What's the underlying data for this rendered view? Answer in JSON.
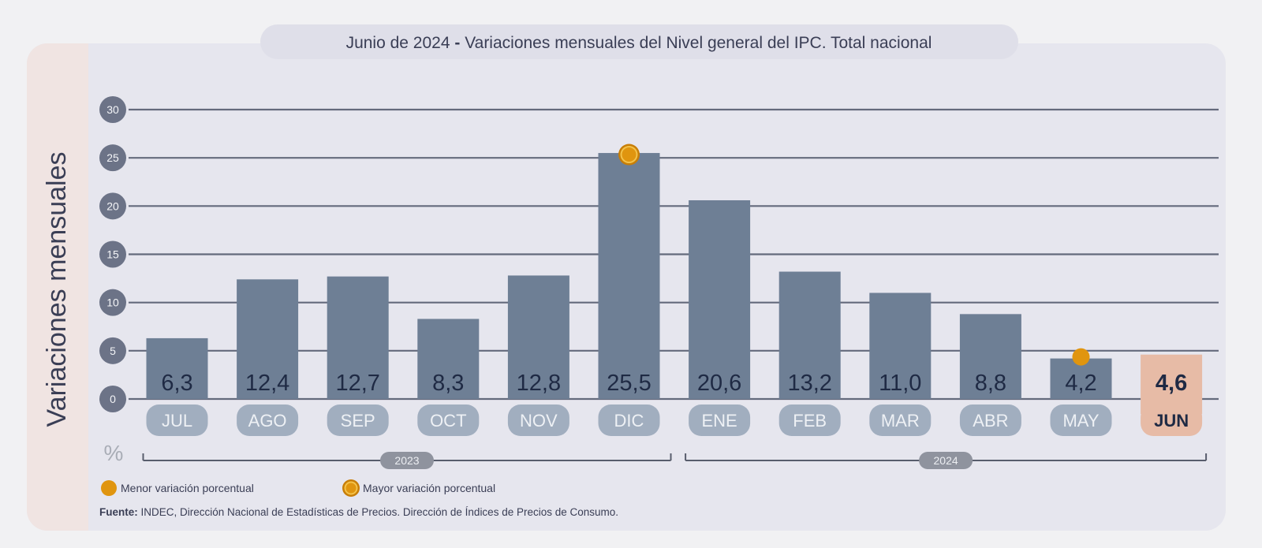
{
  "colors": {
    "page_bg": "#f1f1f3",
    "panel_bg": "#e6e6ee",
    "left_strip": "#f0e4e2",
    "bar": "#6e7f95",
    "bar_value_text": "#1f2a44",
    "month_pill": "#a1aebf",
    "month_pill_text": "#eef1f5",
    "highlight_bar": "#e7bba6",
    "highlight_pill": "#e7bba6",
    "highlight_text": "#1f2a44",
    "gridline": "#646a7c",
    "axis_badge": "#6c7387",
    "marker": "#e0950f",
    "marker_ring": "#c87e07",
    "year_badge": "#8f939e",
    "text_dark": "#3a3e55",
    "text_muted": "#a9adb6"
  },
  "chart_data": {
    "type": "bar",
    "title_prefix": "Junio de 2024",
    "title_sep": " - ",
    "title_main": "Variaciones mensuales del Nivel general del IPC. Total nacional",
    "ylabel": "Variaciones mensuales",
    "unit": "%",
    "categories": [
      "JUL",
      "AGO",
      "SEP",
      "OCT",
      "NOV",
      "DIC",
      "ENE",
      "FEB",
      "MAR",
      "ABR",
      "MAY",
      "JUN"
    ],
    "values": [
      6.3,
      12.4,
      12.7,
      8.3,
      12.8,
      25.5,
      20.6,
      13.2,
      11.0,
      8.8,
      4.2,
      4.6
    ],
    "value_labels": [
      "6,3",
      "12,4",
      "12,7",
      "8,3",
      "12,8",
      "25,5",
      "20,6",
      "13,2",
      "11,0",
      "8,8",
      "4,2",
      "4,6"
    ],
    "ylim": [
      0,
      30
    ],
    "yticks": [
      0,
      5,
      10,
      15,
      20,
      25,
      30
    ],
    "grid": true,
    "highlight_category": "JUN",
    "markers": [
      {
        "category": "MAY",
        "type": "min"
      },
      {
        "category": "DIC",
        "type": "max"
      }
    ],
    "years": [
      {
        "label": "2023",
        "from": "JUL",
        "to": "DIC"
      },
      {
        "label": "2024",
        "from": "ENE",
        "to": "JUN"
      }
    ],
    "legend": [
      {
        "type": "min",
        "label": "Menor variación porcentual"
      },
      {
        "type": "max",
        "label": "Mayor variación porcentual"
      }
    ],
    "legend_position": "bottom-left",
    "source_label": "Fuente:",
    "source_text": " INDEC, Dirección Nacional de Estadísticas de Precios. Dirección de Índices de Precios de Consumo."
  }
}
